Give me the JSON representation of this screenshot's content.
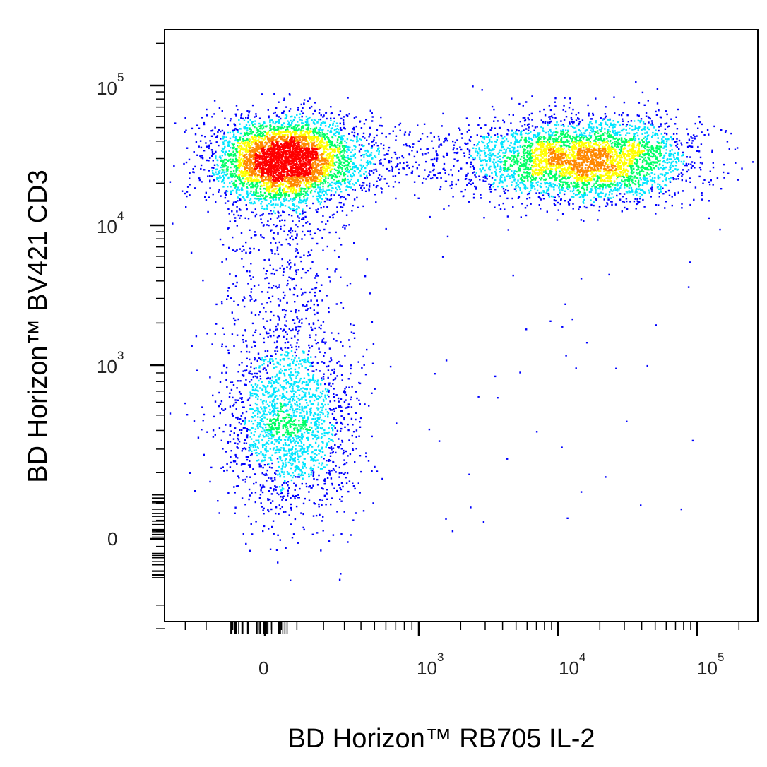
{
  "chart_data": {
    "type": "scatter",
    "style": "flow-cytometry pseudocolor dot plot",
    "xlabel": "BD Horizon™ RB705 IL-2",
    "ylabel": "BD Horizon™ BV421  CD3",
    "x_scale": "biexponential",
    "y_scale": "biexponential",
    "xlim": [
      -300,
      200000
    ],
    "ylim": [
      -300,
      200000
    ],
    "x_ticks": [
      {
        "base": "0",
        "exp": ""
      },
      {
        "base": "10",
        "exp": "3"
      },
      {
        "base": "10",
        "exp": "4"
      },
      {
        "base": "10",
        "exp": "5"
      }
    ],
    "y_ticks": [
      {
        "base": "0",
        "exp": ""
      },
      {
        "base": "10",
        "exp": "3"
      },
      {
        "base": "10",
        "exp": "4"
      },
      {
        "base": "10",
        "exp": "5"
      }
    ],
    "grid": false,
    "density_colormap": [
      "#0000ff",
      "#00e5ff",
      "#00ff66",
      "#ffff00",
      "#ff8800",
      "#ff0000"
    ],
    "populations": [
      {
        "x_center": 60,
        "y_center": 30000,
        "relative_density": 1.0
      },
      {
        "x_center": 25000,
        "y_center": 30000,
        "relative_density": 0.55
      },
      {
        "x_center": 8000,
        "y_center": 30000,
        "relative_density": 0.35
      },
      {
        "x_center": 80,
        "y_center": 400,
        "relative_density": 0.45
      }
    ]
  }
}
